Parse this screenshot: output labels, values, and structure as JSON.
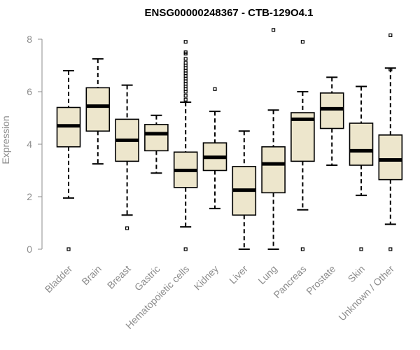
{
  "chart_data": {
    "type": "boxplot",
    "title": "ENSG00000248367 - CTB-129O4.1",
    "xlabel": "",
    "ylabel": "Expression",
    "ylim": [
      0,
      8
    ],
    "yticks": [
      0,
      2,
      4,
      6,
      8
    ],
    "box_fill": "#ede6cc",
    "categories": [
      "Bladder",
      "Brain",
      "Breast",
      "Gastric",
      "Hematopoietic cells",
      "Kidney",
      "Liver",
      "Lung",
      "Pancreas",
      "Prostate",
      "Skin",
      "Unknown / Other"
    ],
    "boxes": [
      {
        "name": "Bladder",
        "whisker_low": 1.95,
        "q1": 3.9,
        "median": 4.7,
        "q3": 5.4,
        "whisker_high": 6.8,
        "outliers": [
          0.0
        ]
      },
      {
        "name": "Brain",
        "whisker_low": 3.25,
        "q1": 4.5,
        "median": 5.45,
        "q3": 6.15,
        "whisker_high": 7.25,
        "outliers": []
      },
      {
        "name": "Breast",
        "whisker_low": 1.3,
        "q1": 3.35,
        "median": 4.15,
        "q3": 4.95,
        "whisker_high": 6.25,
        "outliers": [
          0.8
        ]
      },
      {
        "name": "Gastric",
        "whisker_low": 2.9,
        "q1": 3.75,
        "median": 4.4,
        "q3": 4.75,
        "whisker_high": 5.1,
        "outliers": []
      },
      {
        "name": "Hematopoietic cells",
        "whisker_low": 0.85,
        "q1": 2.35,
        "median": 3.0,
        "q3": 3.7,
        "whisker_high": 5.6,
        "outliers": [
          0.0,
          5.7,
          5.85,
          6.0,
          6.1,
          6.2,
          6.3,
          6.4,
          6.5,
          6.6,
          6.7,
          6.8,
          6.9,
          7.0,
          7.1,
          7.25,
          7.45,
          7.5,
          7.9
        ]
      },
      {
        "name": "Kidney",
        "whisker_low": 1.55,
        "q1": 3.0,
        "median": 3.5,
        "q3": 4.05,
        "whisker_high": 5.25,
        "outliers": [
          6.1
        ]
      },
      {
        "name": "Liver",
        "whisker_low": 0.0,
        "q1": 1.3,
        "median": 2.25,
        "q3": 3.15,
        "whisker_high": 4.5,
        "outliers": []
      },
      {
        "name": "Lung",
        "whisker_low": 0.0,
        "q1": 2.15,
        "median": 3.25,
        "q3": 3.9,
        "whisker_high": 5.3,
        "outliers": [
          8.35
        ]
      },
      {
        "name": "Pancreas",
        "whisker_low": 1.5,
        "q1": 3.35,
        "median": 4.95,
        "q3": 5.2,
        "whisker_high": 6.0,
        "outliers": [
          0.0,
          7.9
        ]
      },
      {
        "name": "Prostate",
        "whisker_low": 3.2,
        "q1": 4.6,
        "median": 5.35,
        "q3": 5.95,
        "whisker_high": 6.55,
        "outliers": []
      },
      {
        "name": "Skin",
        "whisker_low": 2.05,
        "q1": 3.2,
        "median": 3.75,
        "q3": 4.8,
        "whisker_high": 6.2,
        "outliers": [
          0.0
        ]
      },
      {
        "name": "Unknown / Other",
        "whisker_low": 0.95,
        "q1": 2.65,
        "median": 3.4,
        "q3": 4.35,
        "whisker_high": 6.9,
        "outliers": [
          0.0,
          6.85,
          8.15
        ]
      }
    ]
  }
}
